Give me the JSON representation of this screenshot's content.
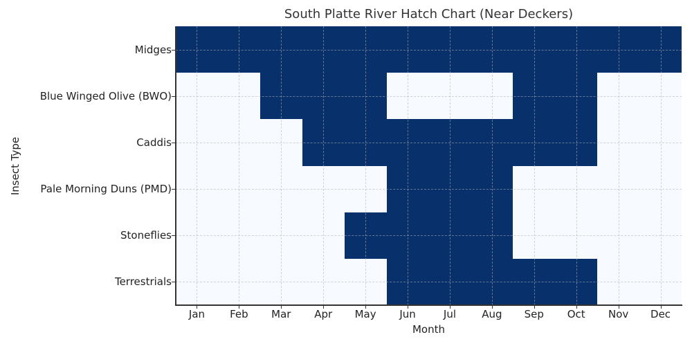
{
  "chart_data": {
    "type": "heatmap",
    "title": "South Platte River Hatch Chart (Near Deckers)",
    "xlabel": "Month",
    "ylabel": "Insect Type",
    "categories": [
      "Jan",
      "Feb",
      "Mar",
      "Apr",
      "May",
      "Jun",
      "Jul",
      "Aug",
      "Sep",
      "Oct",
      "Nov",
      "Dec"
    ],
    "rows": [
      "Midges",
      "Blue Winged Olive (BWO)",
      "Caddis",
      "Pale Morning Duns (PMD)",
      "Stoneflies",
      "Terrestrials"
    ],
    "values": [
      [
        1,
        1,
        1,
        1,
        1,
        1,
        1,
        1,
        1,
        1,
        1,
        1
      ],
      [
        0,
        0,
        1,
        1,
        1,
        0,
        0,
        0,
        1,
        1,
        0,
        0
      ],
      [
        0,
        0,
        0,
        1,
        1,
        1,
        1,
        1,
        1,
        1,
        0,
        0
      ],
      [
        0,
        0,
        0,
        0,
        0,
        1,
        1,
        1,
        0,
        0,
        0,
        0
      ],
      [
        0,
        0,
        0,
        0,
        1,
        1,
        1,
        1,
        0,
        0,
        0,
        0
      ],
      [
        0,
        0,
        0,
        0,
        0,
        1,
        1,
        1,
        1,
        1,
        0,
        0
      ]
    ],
    "colors": {
      "active": "#08306b",
      "inactive": "#f7fbff"
    },
    "grid": true,
    "legend": "none"
  }
}
